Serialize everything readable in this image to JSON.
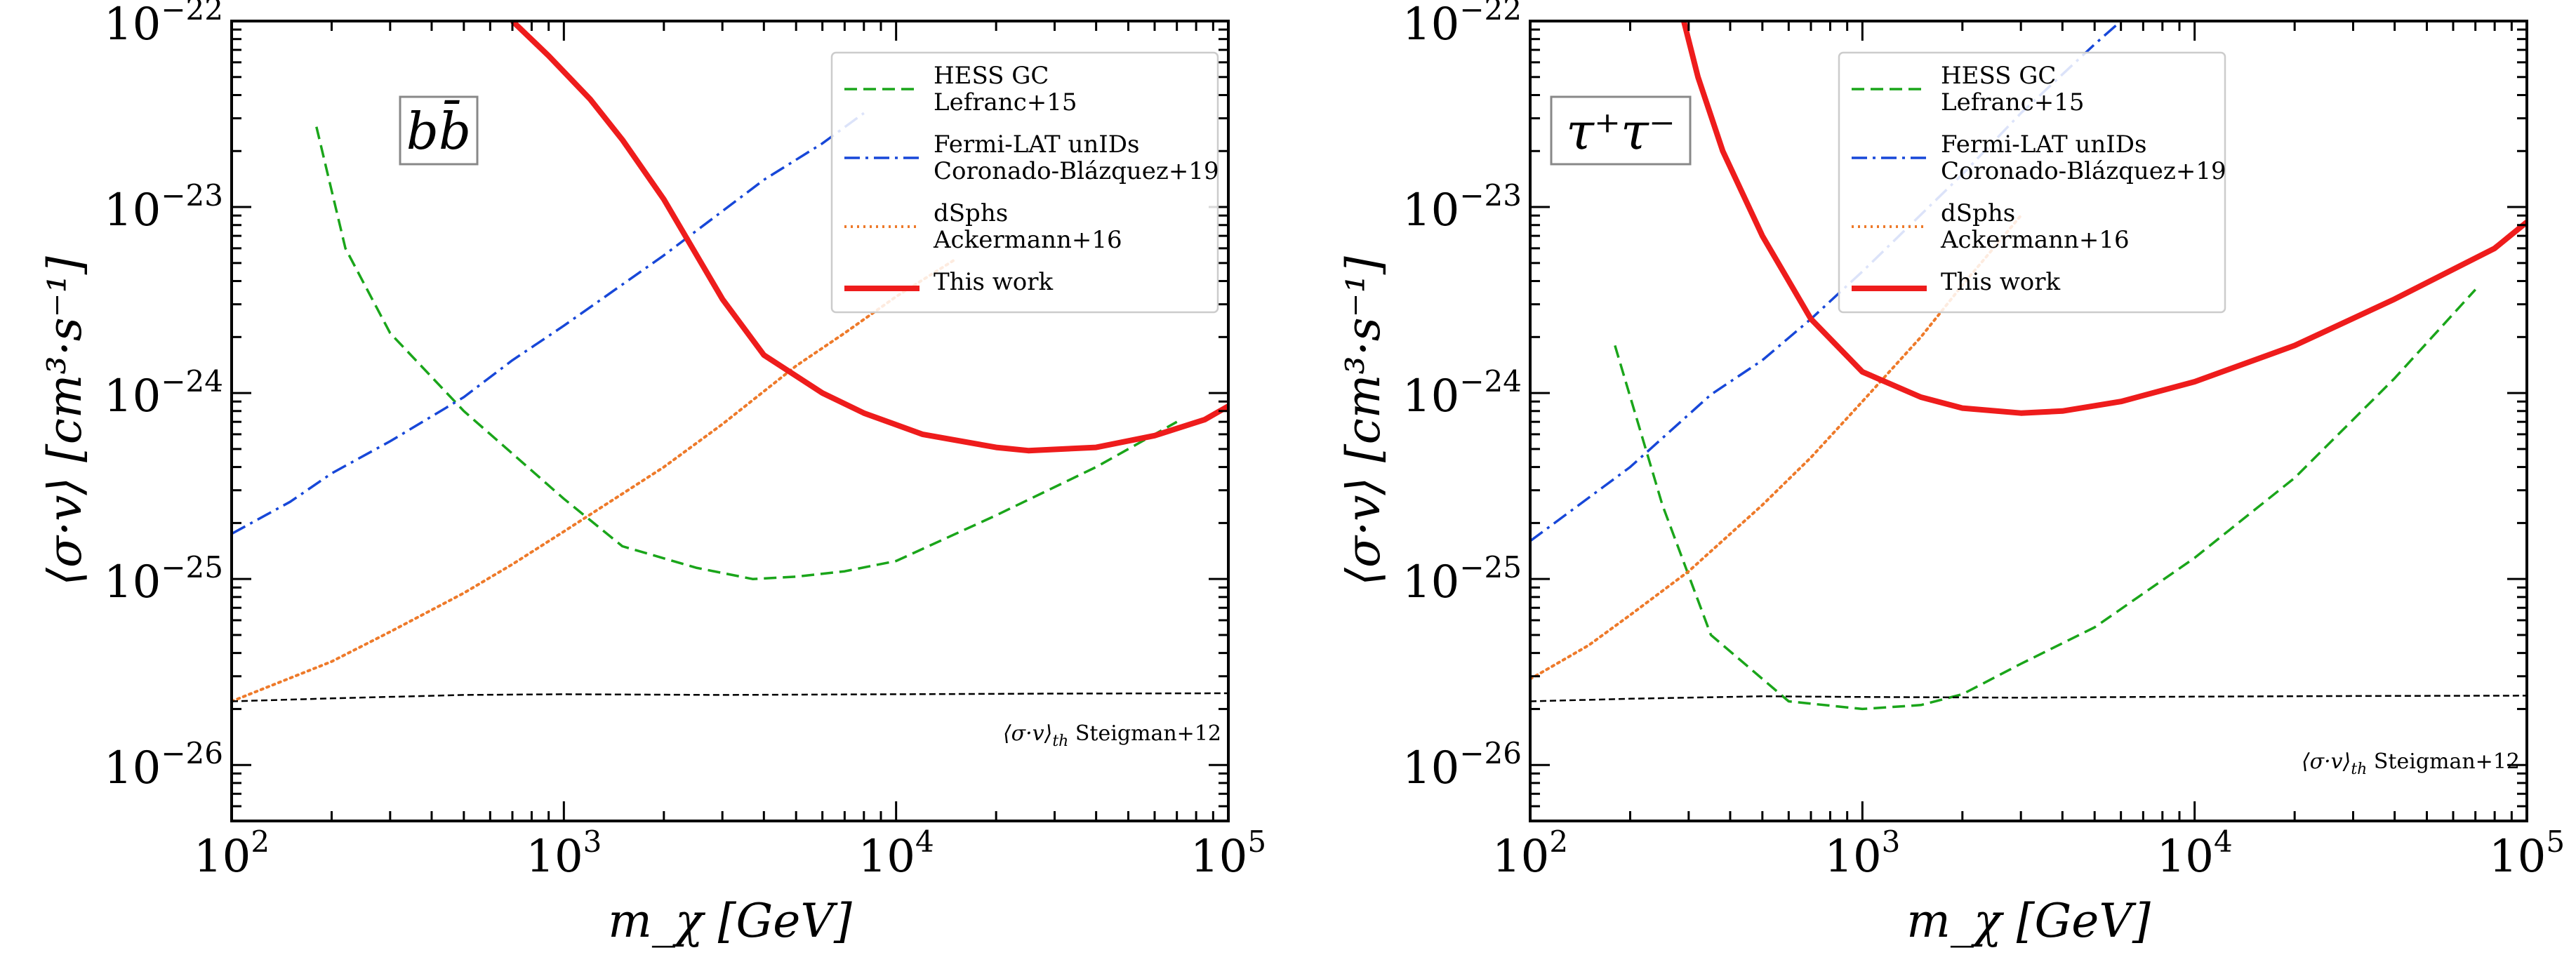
{
  "chart_data": [
    {
      "type": "line",
      "channel": "bb̄",
      "xlabel": "m_χ [GeV]",
      "ylabel": "⟨σ·v⟩ [cm³·s⁻¹]",
      "x_scale": "log",
      "y_scale": "log",
      "xlim": [
        100,
        100000
      ],
      "ylim": [
        5e-27,
        1e-22
      ],
      "x_ticks": [
        {
          "value": 100,
          "base": "10",
          "exp": "2"
        },
        {
          "value": 1000,
          "base": "10",
          "exp": "3"
        },
        {
          "value": 10000,
          "base": "10",
          "exp": "4"
        },
        {
          "value": 100000,
          "base": "10",
          "exp": "5"
        }
      ],
      "y_ticks": [
        {
          "value": 1e-26,
          "base": "10",
          "exp": "−26"
        },
        {
          "value": 1e-25,
          "base": "10",
          "exp": "−25"
        },
        {
          "value": 1e-24,
          "base": "10",
          "exp": "−24"
        },
        {
          "value": 1e-23,
          "base": "10",
          "exp": "−23"
        },
        {
          "value": 1e-22,
          "base": "10",
          "exp": "−22"
        }
      ],
      "legend_position": "top-right",
      "series": [
        {
          "name": "HESS GC Lefranc+15",
          "label_lines": [
            "HESS GC",
            "Lefranc+15"
          ],
          "color": "#1aa51a",
          "dash": "dashed",
          "width": 3.5,
          "x": [
            180,
            220,
            300,
            500,
            1000,
            1500,
            2500,
            3700,
            5000,
            7000,
            10000,
            20000,
            40000,
            70000
          ],
          "y": [
            2.7e-23,
            6e-24,
            2.1e-24,
            8e-25,
            2.7e-25,
            1.5e-25,
            1.15e-25,
            1e-25,
            1.03e-25,
            1.1e-25,
            1.25e-25,
            2.2e-25,
            4e-25,
            7e-25
          ]
        },
        {
          "name": "Fermi-LAT unIDs Coronado-Blázquez+19",
          "label_lines": [
            "Fermi-LAT unIDs",
            "Coronado-Blázquez+19"
          ],
          "color": "#1747d8",
          "dash": "dashdot",
          "width": 3.5,
          "x": [
            100,
            150,
            200,
            300,
            500,
            700,
            1000,
            2000,
            4000,
            6000,
            8000
          ],
          "y": [
            1.75e-25,
            2.6e-25,
            3.7e-25,
            5.5e-25,
            9.5e-25,
            1.5e-24,
            2.3e-24,
            5.5e-24,
            1.4e-23,
            2.2e-23,
            3.2e-23
          ]
        },
        {
          "name": "dSphs Ackermann+16",
          "label_lines": [
            "dSphs",
            "Ackermann+16"
          ],
          "color": "#ee7a2a",
          "dash": "dotted",
          "width": 4,
          "x": [
            100,
            200,
            300,
            500,
            700,
            1000,
            2000,
            3000,
            5000,
            7000,
            10000,
            15000
          ],
          "y": [
            2.2e-26,
            3.6e-26,
            5.2e-26,
            8.4e-26,
            1.2e-25,
            1.8e-25,
            4e-25,
            6.8e-25,
            1.4e-24,
            2.1e-24,
            3.3e-24,
            5.2e-24
          ]
        },
        {
          "name": "This work",
          "label_lines": [
            "This work"
          ],
          "color": "#ee1c1c",
          "dash": "solid",
          "width": 8,
          "x": [
            700,
            900,
            1200,
            1500,
            2000,
            3000,
            4000,
            6000,
            8000,
            12000,
            20000,
            25000,
            40000,
            60000,
            85000,
            100000
          ],
          "y": [
            1e-22,
            6.5e-23,
            3.8e-23,
            2.3e-23,
            1.1e-23,
            3.2e-24,
            1.6e-24,
            1e-24,
            7.8e-25,
            6e-25,
            5.1e-25,
            4.9e-25,
            5.1e-25,
            5.9e-25,
            7.2e-25,
            8.5e-25
          ]
        },
        {
          "name": "⟨σ·v⟩th Steigman+12",
          "color": "#000000",
          "dash": "finedash",
          "width": 2.5,
          "in_legend": false,
          "x": [
            100,
            200,
            500,
            1000,
            3000,
            10000,
            30000,
            100000
          ],
          "y": [
            2.2e-26,
            2.28e-26,
            2.38e-26,
            2.4e-26,
            2.38e-26,
            2.4e-26,
            2.42e-26,
            2.43e-26
          ]
        }
      ],
      "annotation": {
        "symbol": "⟨σ·v⟩",
        "subscript": "th",
        "text": "Steigman+12"
      }
    },
    {
      "type": "line",
      "channel": "τ⁺τ⁻",
      "xlabel": "m_χ [GeV]",
      "ylabel": "⟨σ·v⟩ [cm³·s⁻¹]",
      "x_scale": "log",
      "y_scale": "log",
      "xlim": [
        100,
        100000
      ],
      "ylim": [
        5e-27,
        1e-22
      ],
      "x_ticks": [
        {
          "value": 100,
          "base": "10",
          "exp": "2"
        },
        {
          "value": 1000,
          "base": "10",
          "exp": "3"
        },
        {
          "value": 10000,
          "base": "10",
          "exp": "4"
        },
        {
          "value": 100000,
          "base": "10",
          "exp": "5"
        }
      ],
      "y_ticks": [
        {
          "value": 1e-26,
          "base": "10",
          "exp": "−26"
        },
        {
          "value": 1e-25,
          "base": "10",
          "exp": "−25"
        },
        {
          "value": 1e-24,
          "base": "10",
          "exp": "−24"
        },
        {
          "value": 1e-23,
          "base": "10",
          "exp": "−23"
        },
        {
          "value": 1e-22,
          "base": "10",
          "exp": "−22"
        }
      ],
      "legend_position": "top-right",
      "series": [
        {
          "name": "HESS GC Lefranc+15",
          "label_lines": [
            "HESS GC",
            "Lefranc+15"
          ],
          "color": "#1aa51a",
          "dash": "dashed",
          "width": 3.5,
          "x": [
            180,
            250,
            350,
            600,
            1000,
            1500,
            2000,
            3000,
            5000,
            10000,
            20000,
            40000,
            70000
          ],
          "y": [
            1.8e-24,
            2.5e-25,
            5e-26,
            2.2e-26,
            2e-26,
            2.1e-26,
            2.4e-26,
            3.5e-26,
            5.5e-26,
            1.3e-25,
            3.5e-25,
            1.2e-24,
            3.6e-24
          ]
        },
        {
          "name": "Fermi-LAT unIDs Coronado-Blázquez+19",
          "label_lines": [
            "Fermi-LAT unIDs",
            "Coronado-Blázquez+19"
          ],
          "color": "#1747d8",
          "dash": "dashdot",
          "width": 3.5,
          "x": [
            100,
            200,
            350,
            500,
            700,
            1000,
            2000,
            3000,
            5000,
            6000
          ],
          "y": [
            1.6e-25,
            4e-25,
            9.8e-25,
            1.5e-24,
            2.5e-24,
            4.5e-24,
            1.5e-23,
            3.2e-23,
            7.5e-23,
            1e-22
          ]
        },
        {
          "name": "dSphs Ackermann+16",
          "label_lines": [
            "dSphs",
            "Ackermann+16"
          ],
          "color": "#ee7a2a",
          "dash": "dotted",
          "width": 4,
          "x": [
            100,
            150,
            200,
            300,
            500,
            700,
            1000,
            1500,
            2000,
            3000
          ],
          "y": [
            2.9e-26,
            4.4e-26,
            6.4e-26,
            1.1e-25,
            2.5e-25,
            4.5e-25,
            9e-25,
            2e-24,
            3.8e-24,
            9e-24
          ]
        },
        {
          "name": "This work",
          "label_lines": [
            "This work"
          ],
          "color": "#ee1c1c",
          "dash": "solid",
          "width": 8,
          "x": [
            290,
            320,
            380,
            500,
            700,
            1000,
            1500,
            2000,
            3000,
            4000,
            6000,
            10000,
            20000,
            40000,
            80000,
            100000
          ],
          "y": [
            1e-22,
            5e-23,
            2e-23,
            7e-24,
            2.5e-24,
            1.3e-24,
            9.5e-25,
            8.3e-25,
            7.8e-25,
            8e-25,
            9e-25,
            1.15e-24,
            1.8e-24,
            3.2e-24,
            6e-24,
            8.3e-24
          ]
        },
        {
          "name": "⟨σ·v⟩th Steigman+12",
          "color": "#000000",
          "dash": "finedash",
          "width": 2.5,
          "in_legend": false,
          "x": [
            100,
            200,
            500,
            1000,
            3000,
            10000,
            30000,
            100000
          ],
          "y": [
            2.2e-26,
            2.27e-26,
            2.34e-26,
            2.32e-26,
            2.3e-26,
            2.33e-26,
            2.35e-26,
            2.36e-26
          ]
        }
      ],
      "annotation": {
        "symbol": "⟨σ·v⟩",
        "subscript": "th",
        "text": "Steigman+12"
      }
    }
  ]
}
